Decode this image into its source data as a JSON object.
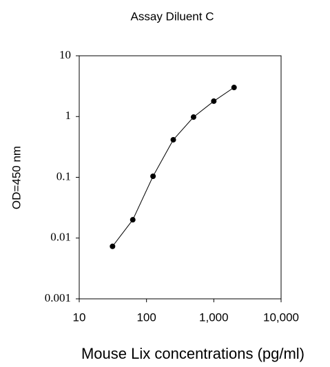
{
  "chart_data": {
    "type": "line",
    "title": "Assay Diluent C",
    "xlabel": "Mouse Lix concentrations (pg/ml)",
    "ylabel": "OD=450 nm",
    "xscale": "log",
    "yscale": "log",
    "series": [
      {
        "color": "#000000",
        "x": [
          31.25,
          62.5,
          125,
          250,
          500,
          1000,
          2000
        ],
        "values": [
          0.0073,
          0.02,
          0.104,
          0.415,
          0.98,
          1.79,
          3.01
        ]
      }
    ],
    "xlim": [
      10,
      10000
    ],
    "xticks": [
      10,
      100,
      {
        "value": 1000,
        "label": "1,000"
      },
      {
        "value": 10000,
        "label": "10,000"
      }
    ],
    "ylim": [
      0.001,
      10
    ],
    "yticks": [
      0.001,
      0.01,
      0.1,
      1,
      10
    ]
  }
}
